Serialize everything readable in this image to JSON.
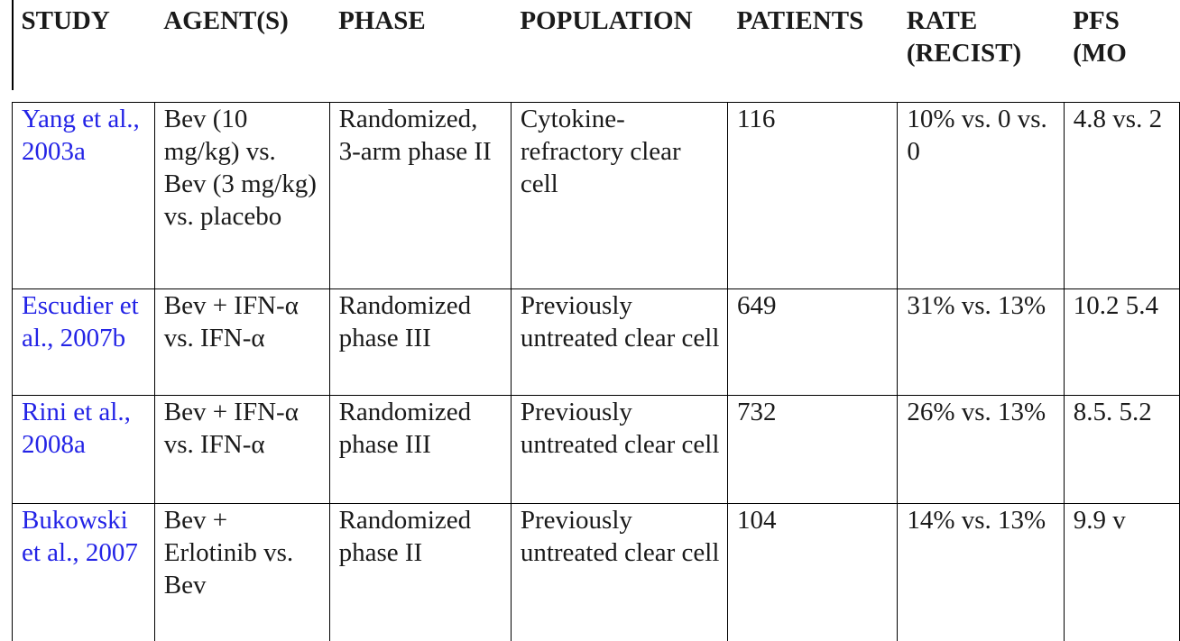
{
  "table": {
    "headers": {
      "study": "STUDY",
      "agents": "AGENT(S)",
      "phase": "PHASE",
      "population": "POPULATION",
      "patients": "PATIENTS",
      "rate": "RATE (RECIST)",
      "pfs": "PFS (MO"
    },
    "rows": [
      {
        "study": "Yang et al., 2003a",
        "agents": "Bev (10 mg/kg) vs. Bev (3 mg/kg) vs. placebo",
        "phase": "Randomized, 3-arm phase II",
        "population": "Cytokine-refractory clear cell",
        "patients": "116",
        "rate": "10% vs. 0 vs. 0",
        "pfs": "4.8 vs. 2"
      },
      {
        "study": "Escudier et al., 2007b",
        "agents": "Bev + IFN-α vs. IFN-α",
        "phase": "Randomized phase III",
        "population": "Previously untreated clear cell",
        "patients": "649",
        "rate": "31% vs. 13%",
        "pfs": "10.2 5.4"
      },
      {
        "study": "Rini et al., 2008a",
        "agents": "Bev + IFN-α vs. IFN-α",
        "phase": "Randomized phase III",
        "population": "Previously untreated clear cell",
        "patients": "732",
        "rate": "26% vs. 13%",
        "pfs": "8.5. 5.2"
      },
      {
        "study": "Bukowski et al., 2007",
        "agents": "Bev + Erlotinib vs. Bev",
        "phase": "Randomized phase II",
        "population": "Previously untreated clear cell",
        "patients": "104",
        "rate": "14% vs. 13%",
        "pfs": "9.9 v"
      }
    ]
  },
  "colors": {
    "link": "#2323e6",
    "text": "#1a1a1a",
    "border": "#000000"
  }
}
